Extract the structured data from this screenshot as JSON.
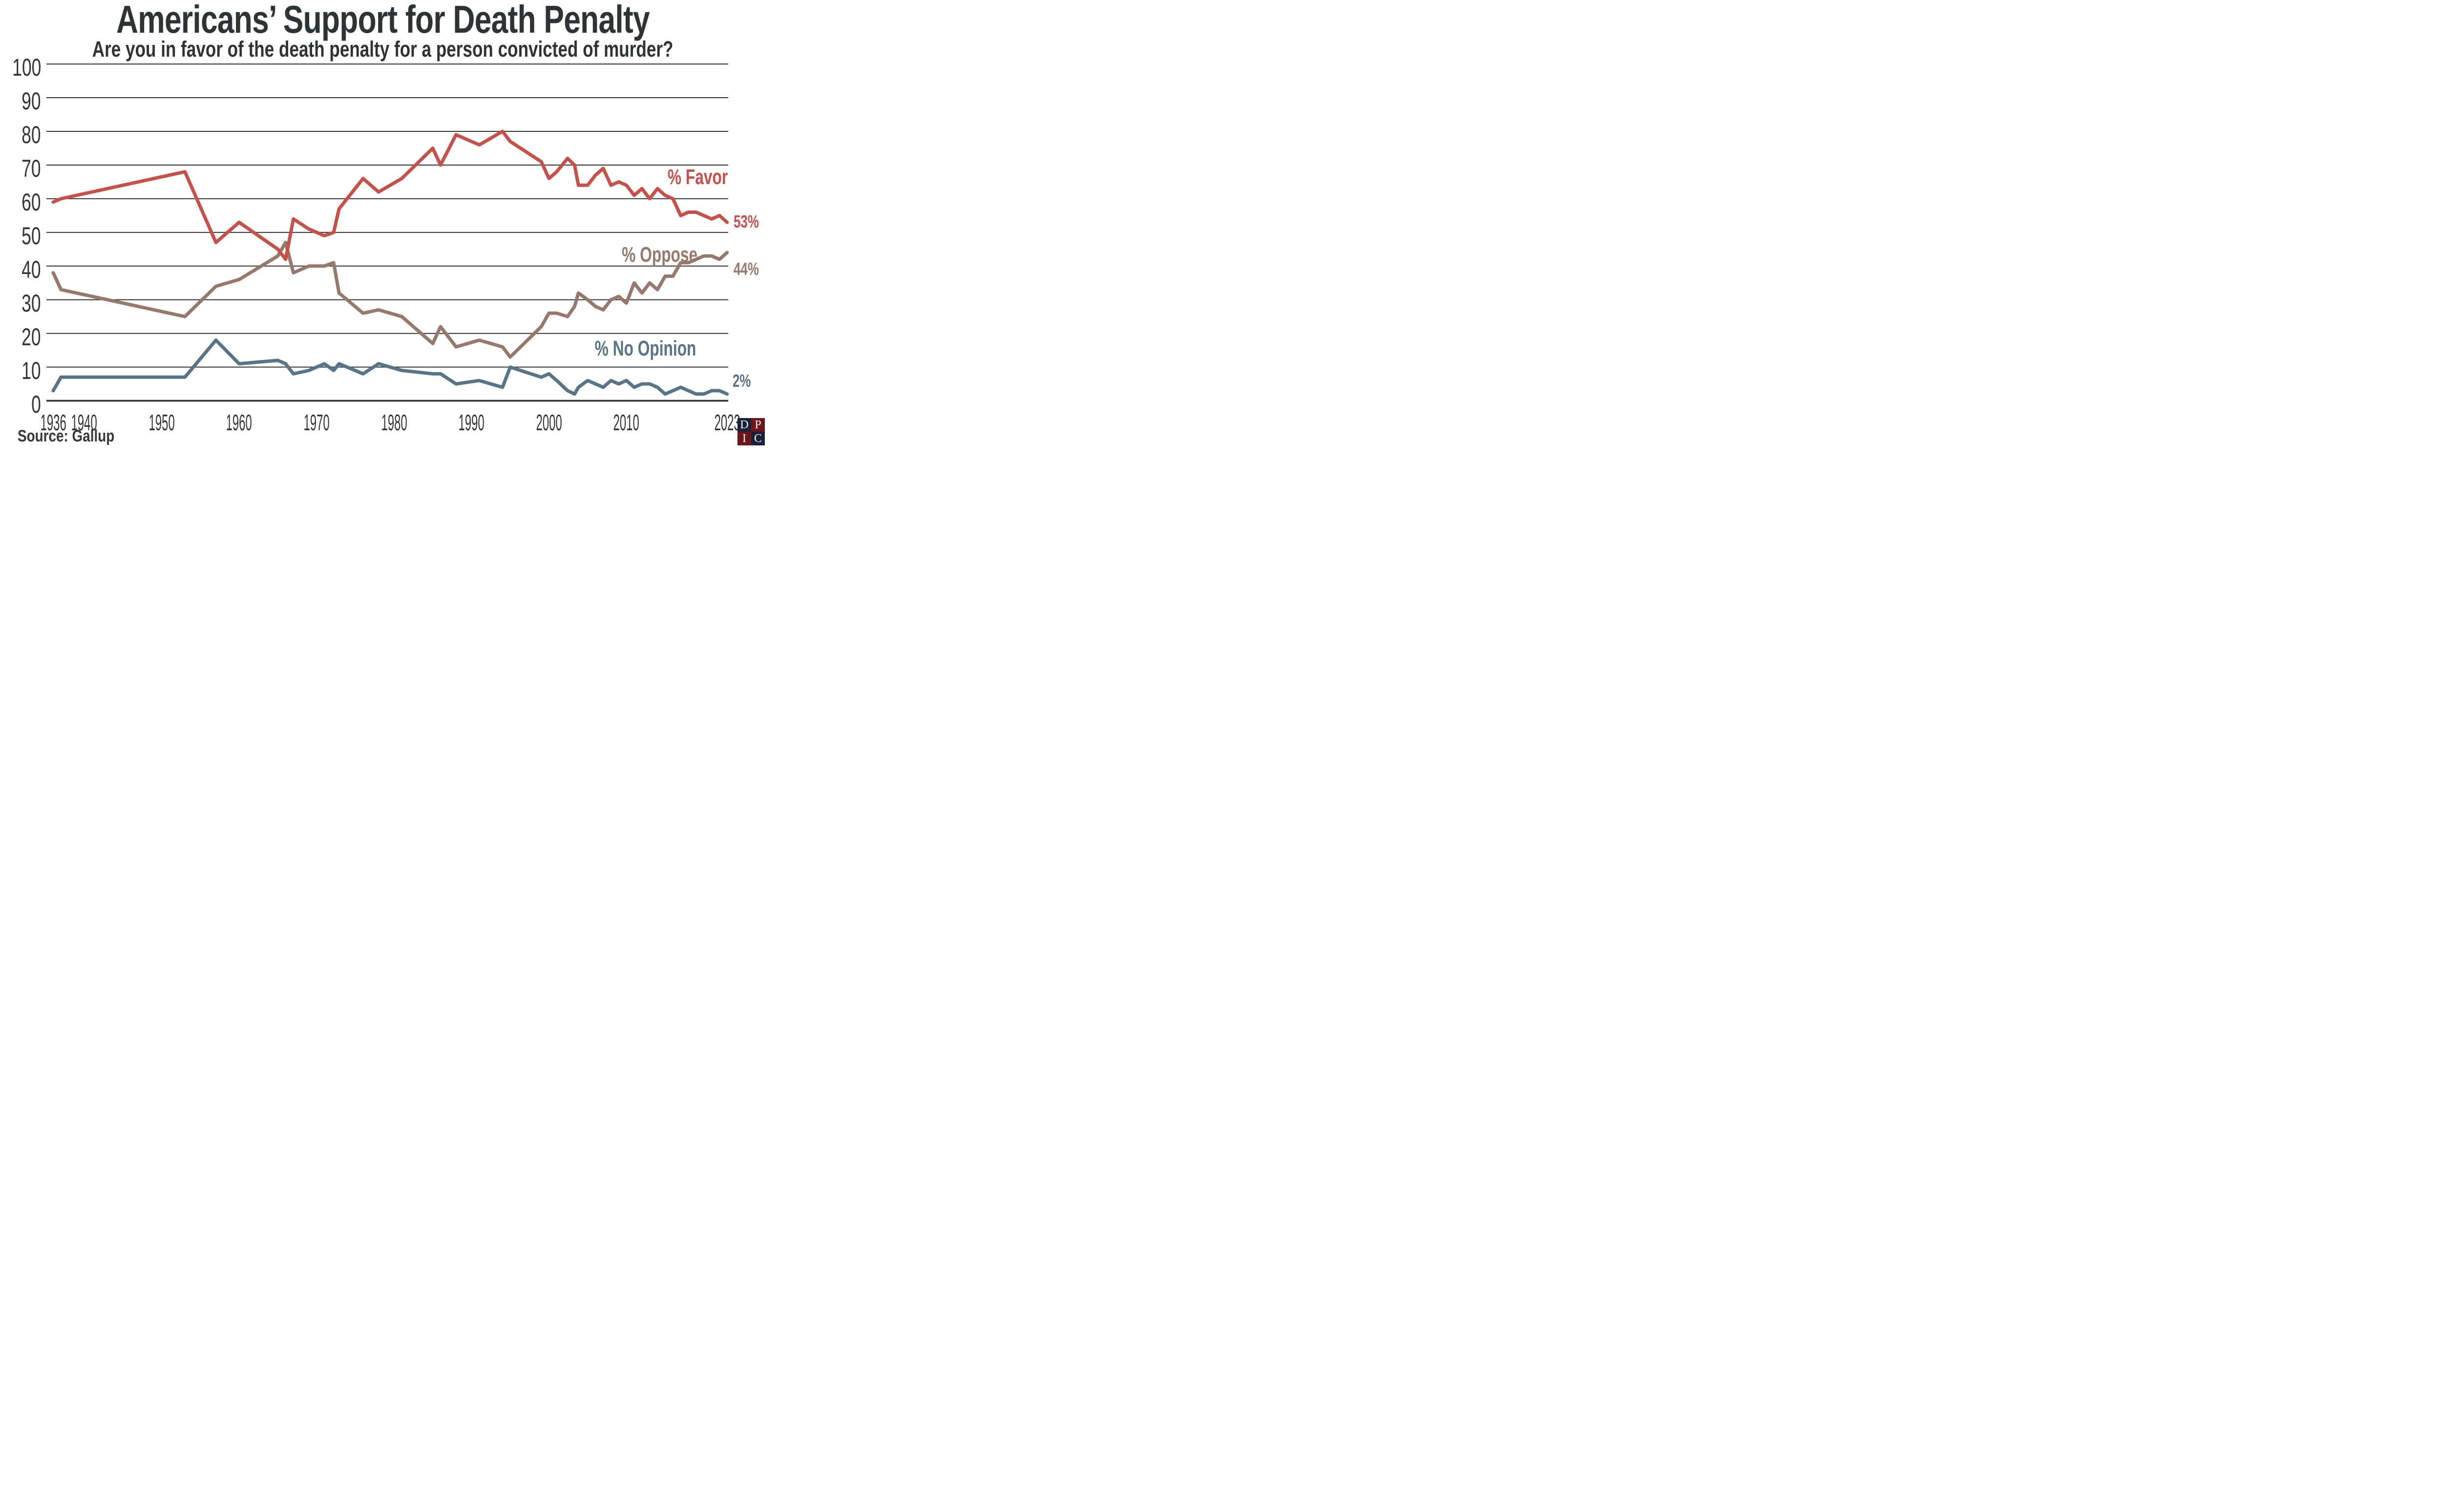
{
  "title": "Americans’ Support for Death Penalty",
  "subtitle": "Are you in favor of the death penalty for a person convicted of murder?",
  "source_label": "Source: Gallup",
  "colors": {
    "favor": "#c4524a",
    "oppose": "#97796b",
    "no_opinion": "#587487",
    "text_dark": "#2e3436",
    "grid": "#2f3536",
    "background": "#ffffff",
    "logo_navy": "#1a2139",
    "logo_maroon": "#6e1519",
    "logo_letter": "#f5f3ee"
  },
  "logo": {
    "name": "DPIC",
    "cells": [
      {
        "letter": "D",
        "bg": "#1a2139"
      },
      {
        "letter": "P",
        "bg": "#6e1519"
      },
      {
        "letter": "I",
        "bg": "#6e1519"
      },
      {
        "letter": "C",
        "bg": "#1a2139"
      }
    ]
  },
  "chart_data": {
    "type": "line",
    "title": "Americans’ Support for Death Penalty",
    "xlabel": "",
    "ylabel": "",
    "ylim": [
      0,
      100
    ],
    "ytick_step": 10,
    "y_ticks": [
      0,
      10,
      20,
      30,
      40,
      50,
      60,
      70,
      80,
      90,
      100
    ],
    "x_ticks": [
      1936,
      1940,
      1950,
      1960,
      1970,
      1980,
      1990,
      2000,
      2010,
      2023
    ],
    "xlim": [
      1936,
      2023
    ],
    "grid": true,
    "legend_position": "inline-right",
    "series": [
      {
        "name": "% Favor",
        "color": "#c4524a",
        "end_label": "53%",
        "points": [
          [
            1936,
            59
          ],
          [
            1937,
            60
          ],
          [
            1953,
            68
          ],
          [
            1957,
            47
          ],
          [
            1960,
            53
          ],
          [
            1965,
            45
          ],
          [
            1966,
            42
          ],
          [
            1967,
            54
          ],
          [
            1969,
            51
          ],
          [
            1971,
            49
          ],
          [
            1972.2,
            50
          ],
          [
            1972.9,
            57
          ],
          [
            1976,
            66
          ],
          [
            1978,
            62
          ],
          [
            1981,
            66
          ],
          [
            1985,
            75
          ],
          [
            1986,
            70
          ],
          [
            1988,
            79
          ],
          [
            1991,
            76
          ],
          [
            1994,
            80
          ],
          [
            1995,
            77
          ],
          [
            1999,
            71
          ],
          [
            2000,
            66
          ],
          [
            2001,
            68
          ],
          [
            2002.4,
            72
          ],
          [
            2003.3,
            70
          ],
          [
            2003.8,
            64
          ],
          [
            2005,
            64
          ],
          [
            2006,
            67
          ],
          [
            2007,
            69
          ],
          [
            2008,
            64
          ],
          [
            2009,
            65
          ],
          [
            2010,
            64
          ],
          [
            2011,
            61
          ],
          [
            2012,
            63
          ],
          [
            2013,
            60
          ],
          [
            2014,
            63
          ],
          [
            2015,
            61
          ],
          [
            2016,
            60
          ],
          [
            2017,
            55
          ],
          [
            2018,
            56
          ],
          [
            2019,
            56
          ],
          [
            2020,
            55
          ],
          [
            2021,
            54
          ],
          [
            2022,
            55
          ],
          [
            2023,
            53
          ]
        ]
      },
      {
        "name": "% Oppose",
        "color": "#97796b",
        "end_label": "44%",
        "points": [
          [
            1936,
            38
          ],
          [
            1937,
            33
          ],
          [
            1953,
            25
          ],
          [
            1957,
            34
          ],
          [
            1960,
            36
          ],
          [
            1965,
            43
          ],
          [
            1966,
            47
          ],
          [
            1967,
            38
          ],
          [
            1969,
            40
          ],
          [
            1971,
            40
          ],
          [
            1972.2,
            41
          ],
          [
            1972.9,
            32
          ],
          [
            1976,
            26
          ],
          [
            1978,
            27
          ],
          [
            1981,
            25
          ],
          [
            1985,
            17
          ],
          [
            1986,
            22
          ],
          [
            1988,
            16
          ],
          [
            1991,
            18
          ],
          [
            1994,
            16
          ],
          [
            1995,
            13
          ],
          [
            1999,
            22
          ],
          [
            2000,
            26
          ],
          [
            2001,
            26
          ],
          [
            2002.4,
            25
          ],
          [
            2003.3,
            28
          ],
          [
            2003.8,
            32
          ],
          [
            2005,
            30
          ],
          [
            2006,
            28
          ],
          [
            2007,
            27
          ],
          [
            2008,
            30
          ],
          [
            2009,
            31
          ],
          [
            2010,
            29
          ],
          [
            2011,
            35
          ],
          [
            2012,
            32
          ],
          [
            2013,
            35
          ],
          [
            2014,
            33
          ],
          [
            2015,
            37
          ],
          [
            2016,
            37
          ],
          [
            2017,
            41
          ],
          [
            2018,
            41
          ],
          [
            2019,
            42
          ],
          [
            2020,
            43
          ],
          [
            2021,
            43
          ],
          [
            2022,
            42
          ],
          [
            2023,
            44
          ]
        ]
      },
      {
        "name": "% No Opinion",
        "color": "#587487",
        "end_label": "2%",
        "points": [
          [
            1936,
            3
          ],
          [
            1937,
            7
          ],
          [
            1953,
            7
          ],
          [
            1957,
            18
          ],
          [
            1960,
            11
          ],
          [
            1965,
            12
          ],
          [
            1966,
            11
          ],
          [
            1967,
            8
          ],
          [
            1969,
            9
          ],
          [
            1971,
            11
          ],
          [
            1972.2,
            9
          ],
          [
            1972.9,
            11
          ],
          [
            1976,
            8
          ],
          [
            1978,
            11
          ],
          [
            1981,
            9
          ],
          [
            1985,
            8
          ],
          [
            1986,
            8
          ],
          [
            1988,
            5
          ],
          [
            1991,
            6
          ],
          [
            1994,
            4
          ],
          [
            1995,
            10
          ],
          [
            1999,
            7
          ],
          [
            2000,
            8
          ],
          [
            2001,
            6
          ],
          [
            2002.4,
            3
          ],
          [
            2003.3,
            2
          ],
          [
            2003.8,
            4
          ],
          [
            2005,
            6
          ],
          [
            2006,
            5
          ],
          [
            2007,
            4
          ],
          [
            2008,
            6
          ],
          [
            2009,
            5
          ],
          [
            2010,
            6
          ],
          [
            2011,
            4
          ],
          [
            2012,
            5
          ],
          [
            2013,
            5
          ],
          [
            2014,
            4
          ],
          [
            2015,
            2
          ],
          [
            2016,
            3
          ],
          [
            2017,
            4
          ],
          [
            2018,
            3
          ],
          [
            2019,
            2
          ],
          [
            2020,
            2
          ],
          [
            2021,
            3
          ],
          [
            2022,
            3
          ],
          [
            2023,
            2
          ]
        ]
      }
    ]
  }
}
